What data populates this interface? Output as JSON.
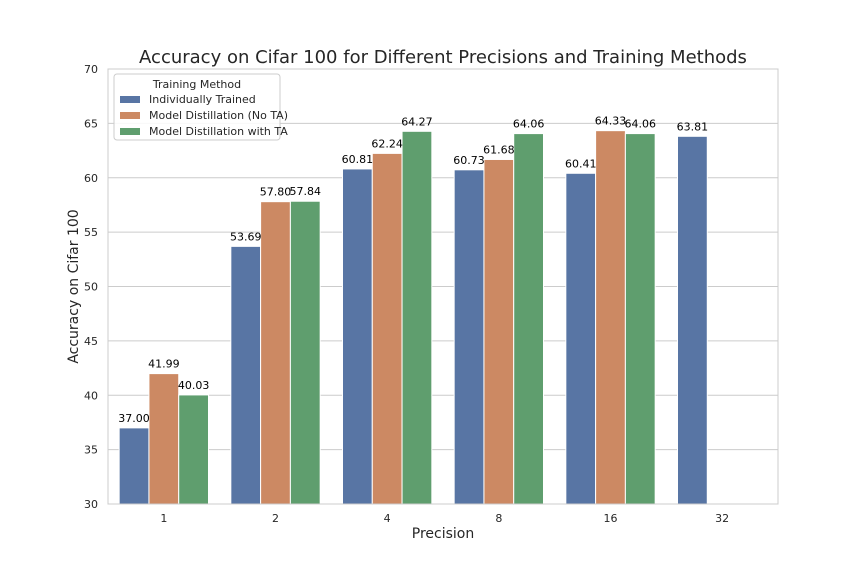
{
  "chart_data": {
    "type": "bar",
    "title": "Accuracy on Cifar 100 for Different Precisions and Training Methods",
    "xlabel": "Precision",
    "ylabel": "Accuracy on Cifar 100",
    "categories": [
      "1",
      "2",
      "4",
      "8",
      "16",
      "32"
    ],
    "ylim": [
      30,
      70
    ],
    "yticks": [
      30,
      35,
      40,
      45,
      50,
      55,
      60,
      65,
      70
    ],
    "grid": "horizontal",
    "legend": {
      "title": "Training Method",
      "placement": "top-left"
    },
    "series": [
      {
        "name": "Individually Trained",
        "color": "#5875a4",
        "values": [
          37.0,
          53.69,
          60.81,
          60.73,
          60.41,
          63.81
        ],
        "labels": [
          "37.00",
          "53.69",
          "60.81",
          "60.73",
          "60.41",
          "63.81"
        ]
      },
      {
        "name": "Model Distillation (No TA)",
        "color": "#cc8963",
        "values": [
          41.99,
          57.8,
          62.24,
          61.68,
          64.33,
          null
        ],
        "labels": [
          "41.99",
          "57.80",
          "62.24",
          "61.68",
          "64.33",
          null
        ]
      },
      {
        "name": "Model Distillation with TA",
        "color": "#5f9e6e",
        "values": [
          40.03,
          57.84,
          64.27,
          64.06,
          64.06,
          null
        ],
        "labels": [
          "40.03",
          "57.84",
          "64.27",
          "64.06",
          "64.06",
          null
        ]
      }
    ]
  }
}
